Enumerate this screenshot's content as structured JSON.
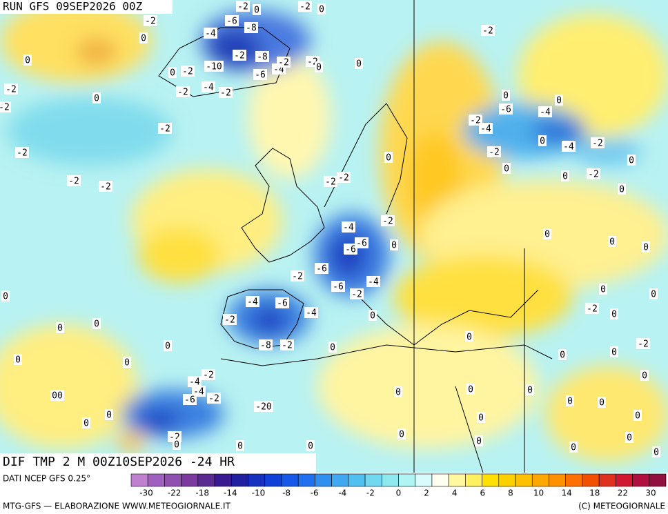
{
  "header": {
    "run": "RUN GFS 09SEP2026 00Z"
  },
  "footer": {
    "field": "DIF TMP 2 M 00Z10SEP2026 -24 HR",
    "source": "DATI NCEP GFS 0.25°",
    "credit": "MTG-GFS — ELABORAZIONE WWW.METEOGIORNALE.IT",
    "copyright": "(C) METEOGIORNALE"
  },
  "colorbar": {
    "colors": [
      "#c080d0",
      "#a060c0",
      "#9050b0",
      "#7a3aa0",
      "#5a2a90",
      "#3a1a90",
      "#2020a0",
      "#1830c0",
      "#1040d8",
      "#1858e8",
      "#2070f0",
      "#3090f0",
      "#40a8f0",
      "#50c0f0",
      "#70d8f0",
      "#90e8f0",
      "#b0f4f4",
      "#d8fcfc",
      "#fffff0",
      "#fff8a0",
      "#fff060",
      "#ffe000",
      "#ffd000",
      "#ffc000",
      "#ffa800",
      "#ff9000",
      "#ff7000",
      "#f05000",
      "#e03020",
      "#d01830",
      "#b01040",
      "#901040"
    ],
    "labels": [
      "-30",
      "-22",
      "-18",
      "-14",
      "-10",
      "-8",
      "-6",
      "-4",
      "-2",
      "0",
      "2",
      "4",
      "6",
      "8",
      "10",
      "14",
      "18",
      "22",
      "30"
    ]
  },
  "contour_labels": [
    "-2",
    "0",
    "-2",
    "0",
    "-2",
    "-6",
    "-8",
    "-4",
    "0",
    "-2",
    "0",
    "-2",
    "-8",
    "-2",
    "0",
    "0",
    "0",
    "-2",
    "-10",
    "-6",
    "-4",
    "-2",
    "-2",
    "-2",
    "-4",
    "-2",
    "0",
    "-2",
    "0",
    "-6",
    "-4",
    "0",
    "-2",
    "-4",
    "-2",
    "-2",
    "0",
    "-4",
    "-2",
    "-2",
    "0",
    "0",
    "0",
    "-2",
    "-2",
    "-2",
    "-2",
    "0",
    "-2",
    "0",
    "-2",
    "-4",
    "-6",
    "-6",
    "0",
    "0",
    "0",
    "0",
    "-6",
    "-2",
    "-6",
    "-4",
    "-2",
    "0",
    "-4",
    "-6",
    "-4",
    "0",
    "0",
    "-2",
    "0",
    "-2",
    "0",
    "0",
    "0",
    "0",
    "-2",
    "0",
    "-8",
    "-2",
    "0",
    "0",
    "0",
    "0",
    "0",
    "-2",
    "-4",
    "0",
    "-4",
    "-6",
    "-2",
    "0",
    "0",
    "0",
    "00",
    "-20",
    "0",
    "0",
    "0",
    "0",
    "0",
    "0",
    "0",
    "-2",
    "0",
    "0",
    "0",
    "0",
    "0",
    "0",
    "0"
  ]
}
